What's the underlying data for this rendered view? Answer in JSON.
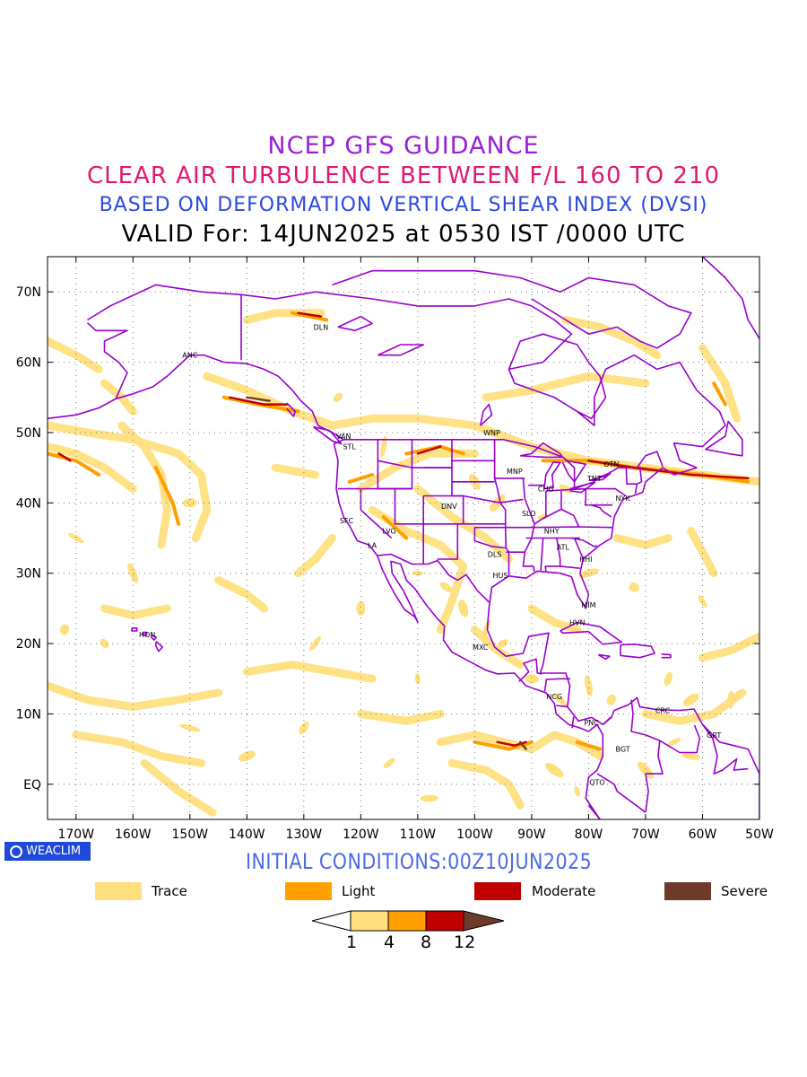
{
  "titles": {
    "line1": "NCEP GFS GUIDANCE",
    "line2": "CLEAR AIR TURBULENCE BETWEEN F/L 160 TO 210",
    "line3": "BASED ON DEFORMATION VERTICAL SHEAR INDEX (DVSI)",
    "line4": "VALID For: 14JUN2025 at 0530 IST /0000 UTC"
  },
  "lat_labels": [
    "70N",
    "60N",
    "50N",
    "40N",
    "30N",
    "20N",
    "10N",
    "EQ"
  ],
  "lon_labels": [
    "170W",
    "160W",
    "150W",
    "140W",
    "130W",
    "120W",
    "110W",
    "100W",
    "90W",
    "80W",
    "70W",
    "60W",
    "50W"
  ],
  "stations": [
    {
      "name": "ANC",
      "lon": -150,
      "lat": 61
    },
    {
      "name": "DLN",
      "lon": -127,
      "lat": 65
    },
    {
      "name": "VAN",
      "lon": -123,
      "lat": 49.5
    },
    {
      "name": "STL",
      "lon": -122,
      "lat": 48
    },
    {
      "name": "WNP",
      "lon": -97,
      "lat": 50
    },
    {
      "name": "MNP",
      "lon": -93,
      "lat": 44.5
    },
    {
      "name": "OTN",
      "lon": -76,
      "lat": 45.5
    },
    {
      "name": "TNT",
      "lon": -79,
      "lat": 43.5
    },
    {
      "name": "CHG",
      "lon": -87.5,
      "lat": 42
    },
    {
      "name": "NYK",
      "lon": -74,
      "lat": 40.7
    },
    {
      "name": "DNV",
      "lon": -104.5,
      "lat": 39.5
    },
    {
      "name": "SFC",
      "lon": -122.5,
      "lat": 37.5
    },
    {
      "name": "SLO",
      "lon": -90.5,
      "lat": 38.5
    },
    {
      "name": "LVG",
      "lon": -115,
      "lat": 36
    },
    {
      "name": "NHY",
      "lon": -86.5,
      "lat": 36
    },
    {
      "name": "LA",
      "lon": -118,
      "lat": 34
    },
    {
      "name": "ATL",
      "lon": -84.5,
      "lat": 33.7
    },
    {
      "name": "DLS",
      "lon": -96.5,
      "lat": 32.7
    },
    {
      "name": "HHI",
      "lon": -80.5,
      "lat": 32
    },
    {
      "name": "HUS",
      "lon": -95.5,
      "lat": 29.7
    },
    {
      "name": "MIM",
      "lon": -80,
      "lat": 25.5
    },
    {
      "name": "HVN",
      "lon": -82,
      "lat": 23
    },
    {
      "name": "HON",
      "lon": -157.5,
      "lat": 21.3
    },
    {
      "name": "MXC",
      "lon": -99,
      "lat": 19.5
    },
    {
      "name": "NCG",
      "lon": -86,
      "lat": 12.5
    },
    {
      "name": "CRC",
      "lon": -67,
      "lat": 10.5
    },
    {
      "name": "PNC",
      "lon": -79.5,
      "lat": 8.8
    },
    {
      "name": "GRT",
      "lon": -58,
      "lat": 7
    },
    {
      "name": "BGT",
      "lon": -74,
      "lat": 5
    },
    {
      "name": "QTO",
      "lon": -78.5,
      "lat": 0.3
    }
  ],
  "badge": "WEACLIM",
  "initial_conditions": "INITIAL CONDITIONS:00Z10JUN2025",
  "legend": [
    {
      "label": "Trace",
      "color": "#ffe07f"
    },
    {
      "label": "Light",
      "color": "#ffa000"
    },
    {
      "label": "Moderate",
      "color": "#c00000"
    },
    {
      "label": "Severe",
      "color": "#6e3b2a"
    }
  ],
  "colorbar": {
    "colors": [
      "#ffffff",
      "#ffe07f",
      "#ffa000",
      "#c00000",
      "#6e3b2a"
    ],
    "ticks": [
      "1",
      "4",
      "8",
      "12"
    ]
  },
  "colors": {
    "coast": "#9900cc",
    "trace": "#ffe07f",
    "light": "#ffa000",
    "moderate": "#c00000",
    "severe": "#6e3b2a"
  }
}
